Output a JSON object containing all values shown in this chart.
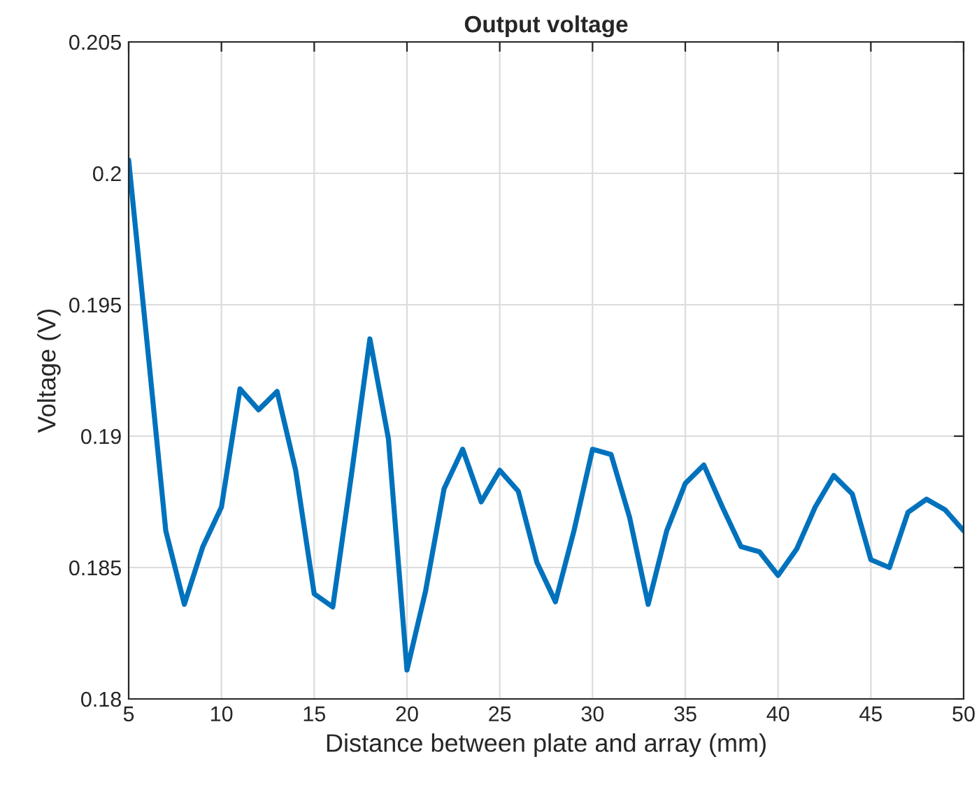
{
  "chart_data": {
    "type": "line",
    "title": "Output voltage",
    "xlabel": "Distance between plate and array (mm)",
    "ylabel": "Voltage (V)",
    "x": [
      5,
      6,
      7,
      8,
      9,
      10,
      11,
      12,
      13,
      14,
      15,
      16,
      17,
      18,
      19,
      20,
      21,
      22,
      23,
      24,
      25,
      26,
      27,
      28,
      29,
      30,
      31,
      32,
      33,
      34,
      35,
      36,
      37,
      38,
      39,
      40,
      41,
      42,
      43,
      44,
      45,
      46,
      47,
      48,
      49,
      50
    ],
    "series": [
      {
        "color": "#0072bd",
        "values": [
          0.2005,
          0.1935,
          0.1864,
          0.1836,
          0.1858,
          0.1873,
          0.1918,
          0.191,
          0.1917,
          0.1887,
          0.184,
          0.1835,
          0.1885,
          0.1937,
          0.1899,
          0.1811,
          0.1841,
          0.188,
          0.1895,
          0.1875,
          0.1887,
          0.1879,
          0.1852,
          0.1837,
          0.1864,
          0.1895,
          0.1893,
          0.1869,
          0.1836,
          0.1864,
          0.1882,
          0.1889,
          0.1873,
          0.1858,
          0.1856,
          0.1847,
          0.1857,
          0.1873,
          0.1885,
          0.1878,
          0.1853,
          0.185,
          0.1871,
          0.1876,
          0.1872,
          0.1864
        ]
      }
    ],
    "xlim": [
      5,
      50
    ],
    "xticks": [
      5,
      10,
      15,
      20,
      25,
      30,
      35,
      40,
      45,
      50
    ],
    "ylim": [
      0.18,
      0.205
    ],
    "yticks": [
      0.18,
      0.185,
      0.19,
      0.195,
      0.2,
      0.205
    ],
    "grid": true,
    "marker": "none",
    "line_style": "solid"
  }
}
